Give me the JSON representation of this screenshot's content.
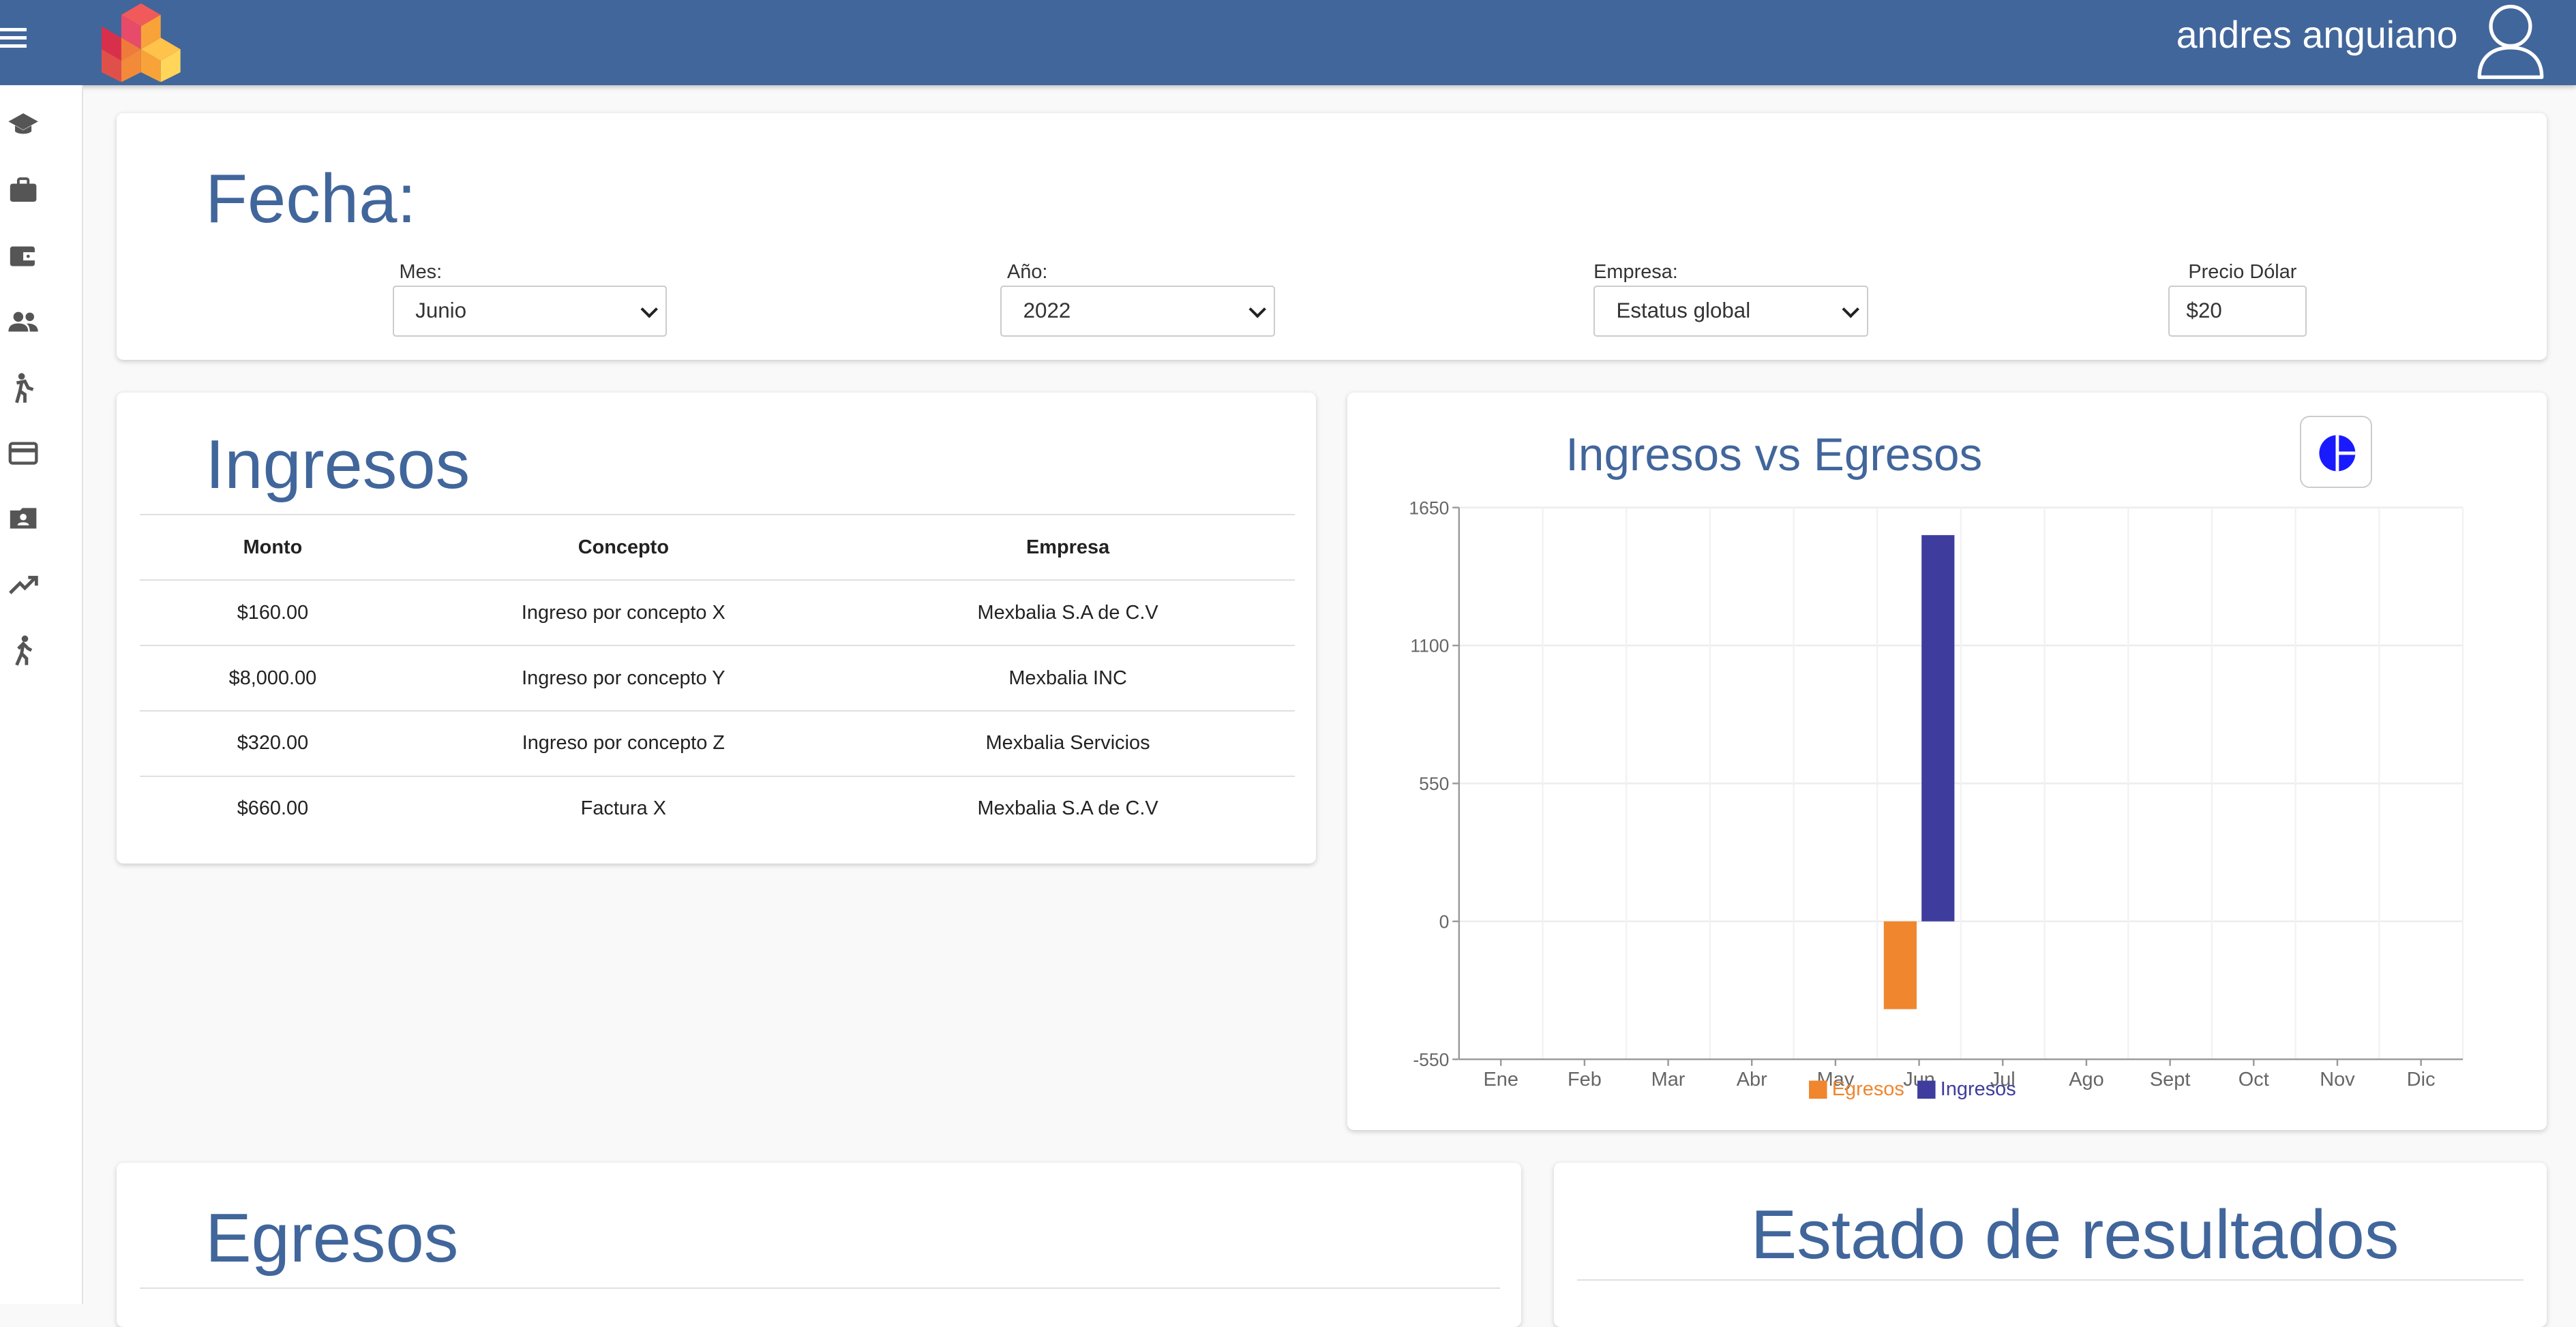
{
  "header": {
    "user_name": "andres anguiano",
    "menu_icon": "hamburger-menu-icon",
    "logo": "cube-logo",
    "avatar_icon": "user-avatar-icon",
    "bg_color": "#41669b"
  },
  "sidebar": {
    "items": [
      {
        "icon": "graduation-cap-icon"
      },
      {
        "icon": "briefcase-icon"
      },
      {
        "icon": "wallet-icon"
      },
      {
        "icon": "people-icon"
      },
      {
        "icon": "person-running-icon"
      },
      {
        "icon": "credit-card-icon"
      },
      {
        "icon": "contact-card-icon"
      },
      {
        "icon": "trending-up-icon"
      },
      {
        "icon": "walking-person-icon"
      }
    ]
  },
  "filters": {
    "title": "Fecha:",
    "mes": {
      "label": "Mes:",
      "value": "Junio"
    },
    "anio": {
      "label": "Año:",
      "value": "2022"
    },
    "empresa": {
      "label": "Empresa:",
      "value": "Estatus global"
    },
    "precio_dolar": {
      "label": "Precio Dólar",
      "value": "$20"
    }
  },
  "ingresos": {
    "title": "Ingresos",
    "columns": [
      "Monto",
      "Concepto",
      "Empresa"
    ],
    "rows": [
      [
        "$160.00",
        "Ingreso por concepto X",
        "Mexbalia S.A de C.V"
      ],
      [
        "$8,000.00",
        "Ingreso por concepto Y",
        "Mexbalia INC"
      ],
      [
        "$320.00",
        "Ingreso por concepto Z",
        "Mexbalia Servicios"
      ],
      [
        "$660.00",
        "Factura X",
        "Mexbalia S.A de C.V"
      ]
    ]
  },
  "egresos": {
    "title": "Egresos"
  },
  "estado_resultados": {
    "title": "Estado de resultados"
  },
  "chart_card": {
    "title": "Ingresos vs Egresos",
    "toggle_icon": "pie-chart-icon"
  },
  "chart_data": {
    "type": "bar",
    "title": "Ingresos vs Egresos",
    "categories": [
      "Ene",
      "Feb",
      "Mar",
      "Abr",
      "May",
      "Jun",
      "Jul",
      "Ago",
      "Sept",
      "Oct",
      "Nov",
      "Dic"
    ],
    "series": [
      {
        "name": "Egresos",
        "color": "#f0862d",
        "values": [
          0,
          0,
          0,
          0,
          0,
          -350,
          0,
          0,
          0,
          0,
          0,
          0
        ]
      },
      {
        "name": "Ingresos",
        "color": "#3e3d9e",
        "values": [
          0,
          0,
          0,
          0,
          0,
          1540,
          0,
          0,
          0,
          0,
          0,
          0
        ]
      }
    ],
    "yticks": [
      1650,
      1100,
      550,
      0,
      -550
    ],
    "ylim": [
      -550,
      1650
    ],
    "grid": true,
    "legend": "bottom"
  }
}
